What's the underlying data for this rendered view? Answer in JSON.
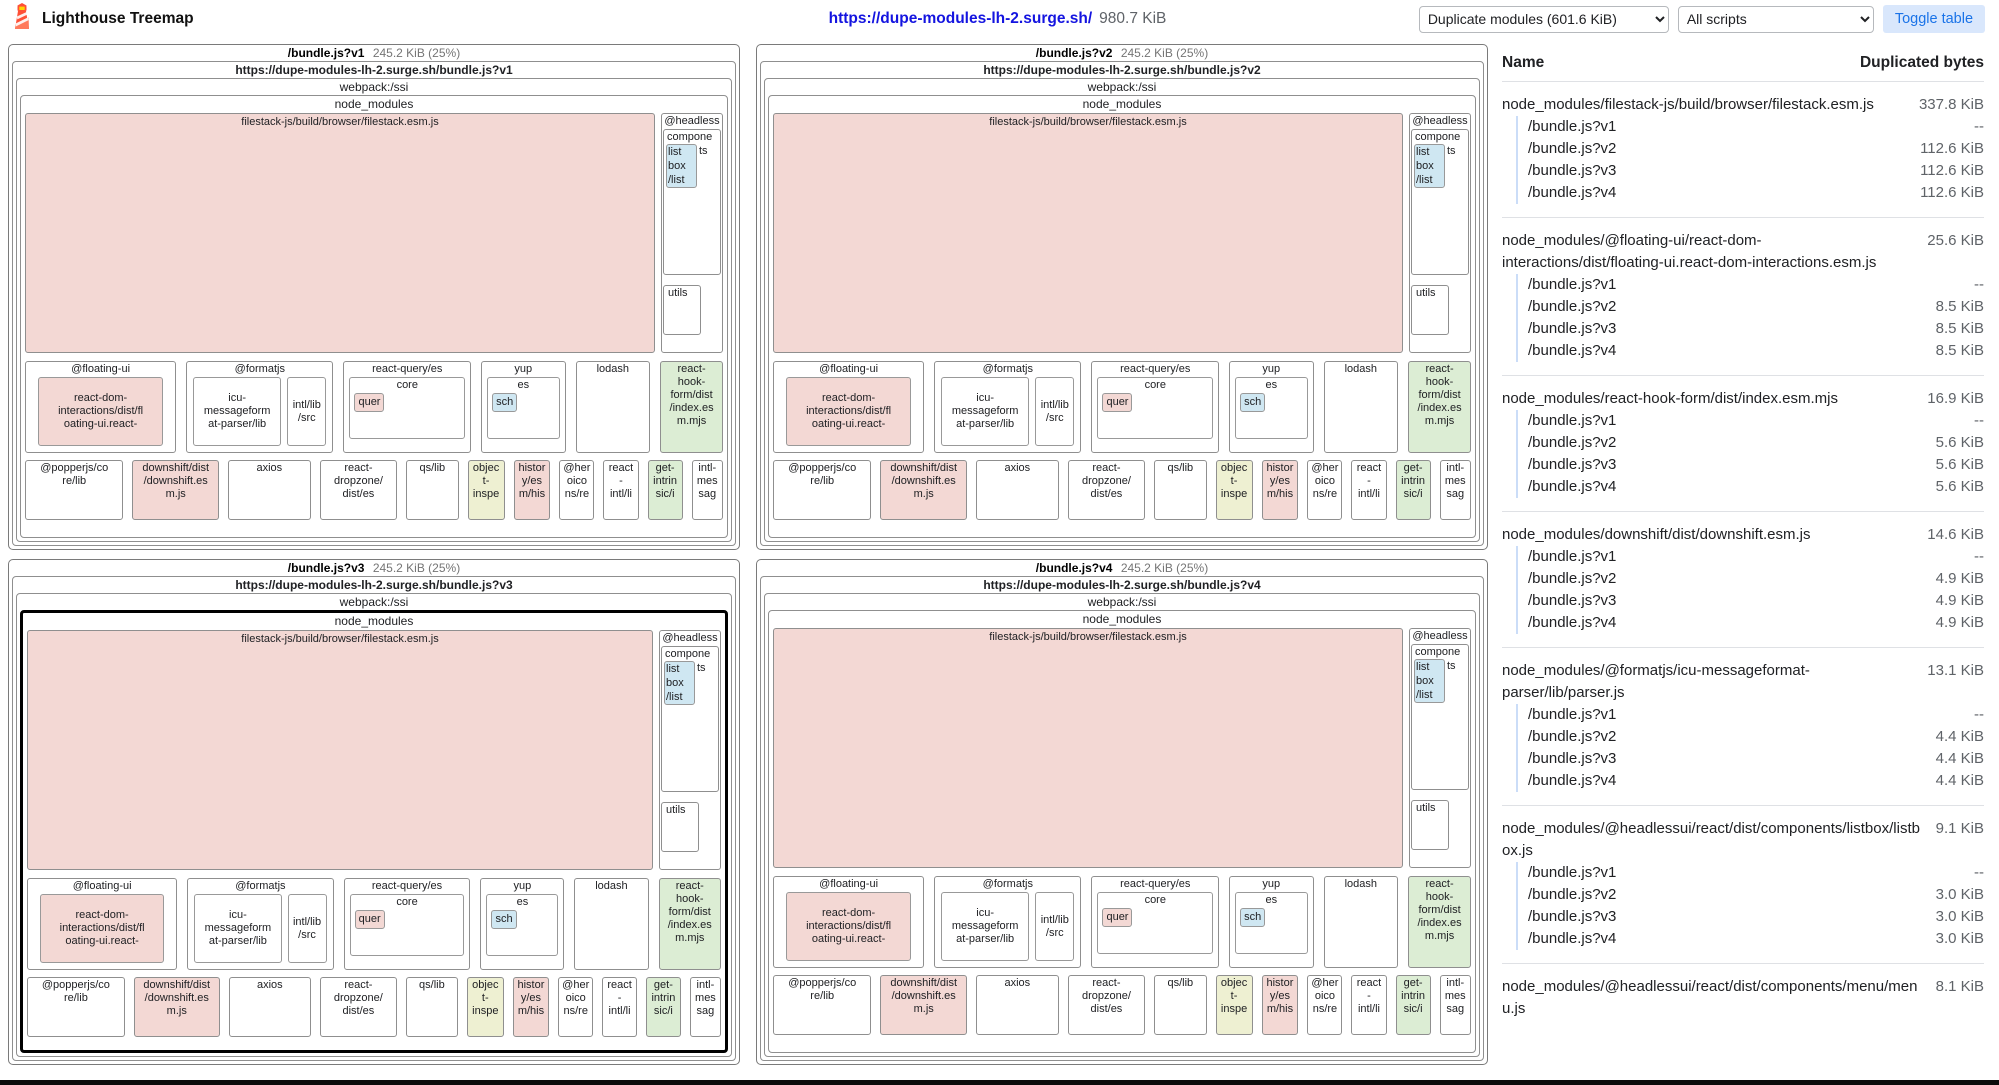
{
  "header": {
    "app_title": "Lighthouse Treemap",
    "url_link": "https://dupe-modules-lh-2.surge.sh/",
    "total_size": "980.7 KiB",
    "view_mode_selected": "Duplicate modules (601.6 KiB)",
    "script_filter_selected": "All scripts",
    "toggle_table_label": "Toggle table"
  },
  "icons": {
    "logo": "lighthouse-logo",
    "logo_colors": {
      "tower": "#ff4f36",
      "stripe": "#ffffff",
      "lamp": "#ffd500"
    }
  },
  "colors": {
    "link_blue": "#1414e0",
    "toggle_bg": "#d9e7fc",
    "toggle_text": "#1a73e8",
    "node_pink": "#f3d8d4",
    "node_green": "#dcedd4",
    "node_blue": "#cfe7f2",
    "node_yellow": "#eef0d2",
    "selected_border": "#000000"
  },
  "treemap": {
    "bundles": [
      {
        "name": "/bundle.js?v1",
        "size": "245.2 KiB (25%)",
        "url": "https://dupe-modules-lh-2.surge.sh/bundle.js?v1",
        "selected": false
      },
      {
        "name": "/bundle.js?v2",
        "size": "245.2 KiB (25%)",
        "url": "https://dupe-modules-lh-2.surge.sh/bundle.js?v2",
        "selected": false
      },
      {
        "name": "/bundle.js?v3",
        "size": "245.2 KiB (25%)",
        "url": "https://dupe-modules-lh-2.surge.sh/bundle.js?v3",
        "selected": true
      },
      {
        "name": "/bundle.js?v4",
        "size": "245.2 KiB (25%)",
        "url": "https://dupe-modules-lh-2.surge.sh/bundle.js?v4",
        "selected": false
      }
    ],
    "common": {
      "webpack_label": "webpack:/ssi",
      "node_modules_label": "node_modules",
      "filestack_label": "filestack-js/build/browser/filestack.esm.js",
      "headless": {
        "title": "@headless",
        "components_line1": "compone",
        "components_line2": "ts",
        "listbox_chip_lines": [
          "list",
          "box",
          "/list"
        ],
        "utils_label": "utils"
      },
      "mid_row": [
        {
          "id": "floating-ui",
          "title": "@floating-ui",
          "chips": [
            {
              "lines": [
                "react-dom-",
                "interactions/dist/fl",
                "oating-ui.react-"
              ],
              "color": "pink"
            }
          ]
        },
        {
          "id": "formatjs",
          "title": "@formatjs",
          "chips": [
            {
              "lines": [
                "icu-",
                "messageform",
                "at-parser/lib"
              ],
              "color": "white"
            },
            {
              "lines": [
                "intl/lib",
                "/src"
              ],
              "color": "white"
            }
          ]
        },
        {
          "id": "react-query-es",
          "title": "react-query/es",
          "inner": {
            "title": "core",
            "chip": {
              "label": "quer",
              "color": "pink"
            }
          }
        },
        {
          "id": "yup",
          "title": "yup",
          "inner": {
            "title": "es",
            "chip": {
              "label": "sch",
              "color": "blue"
            }
          }
        },
        {
          "id": "lodash",
          "title": "lodash"
        },
        {
          "id": "react-hook-form",
          "lines": [
            "react-",
            "hook-",
            "form/dist",
            "/index.es",
            "m.mjs"
          ],
          "color": "green"
        }
      ],
      "bottom_row": [
        {
          "id": "popperjs-core",
          "lines": [
            "@popperjs/co",
            "re/lib"
          ],
          "color": "white"
        },
        {
          "id": "downshift",
          "lines": [
            "downshift/dist",
            "/downshift.es",
            "m.js"
          ],
          "color": "pink"
        },
        {
          "id": "axios",
          "lines": [
            "axios"
          ],
          "color": "white"
        },
        {
          "id": "react-dropzone",
          "lines": [
            "react-",
            "dropzone/",
            "dist/es"
          ],
          "color": "white"
        },
        {
          "id": "qs-lib",
          "lines": [
            "qs/lib"
          ],
          "color": "white"
        },
        {
          "id": "object-inspect",
          "lines": [
            "objec",
            "t-",
            "inspe"
          ],
          "color": "yellow"
        },
        {
          "id": "history-esm",
          "lines": [
            "histor",
            "y/es",
            "m/his"
          ],
          "color": "pink"
        },
        {
          "id": "heroicons",
          "lines": [
            "@her",
            "oico",
            "ns/re"
          ],
          "color": "white"
        },
        {
          "id": "react-intl",
          "lines": [
            "react",
            "-",
            "intl/li"
          ],
          "color": "white"
        },
        {
          "id": "get-intrinsic",
          "lines": [
            "get-",
            "intrin",
            "sic/i"
          ],
          "color": "green"
        },
        {
          "id": "intl-messageformat",
          "lines": [
            "intl-",
            "mes",
            "sag"
          ],
          "color": "white"
        }
      ]
    }
  },
  "table": {
    "columns": [
      "Name",
      "Duplicated bytes"
    ],
    "groups": [
      {
        "name": "node_modules/filestack-js/build/browser/filestack.esm.js",
        "total": "337.8 KiB",
        "rows": [
          {
            "name": "/bundle.js?v1",
            "value": "--"
          },
          {
            "name": "/bundle.js?v2",
            "value": "112.6 KiB"
          },
          {
            "name": "/bundle.js?v3",
            "value": "112.6 KiB"
          },
          {
            "name": "/bundle.js?v4",
            "value": "112.6 KiB"
          }
        ]
      },
      {
        "name": "node_modules/@floating-ui/react-dom-interactions/dist/floating-ui.react-dom-interactions.esm.js",
        "total": "25.6 KiB",
        "rows": [
          {
            "name": "/bundle.js?v1",
            "value": "--"
          },
          {
            "name": "/bundle.js?v2",
            "value": "8.5 KiB"
          },
          {
            "name": "/bundle.js?v3",
            "value": "8.5 KiB"
          },
          {
            "name": "/bundle.js?v4",
            "value": "8.5 KiB"
          }
        ]
      },
      {
        "name": "node_modules/react-hook-form/dist/index.esm.mjs",
        "total": "16.9 KiB",
        "rows": [
          {
            "name": "/bundle.js?v1",
            "value": "--"
          },
          {
            "name": "/bundle.js?v2",
            "value": "5.6 KiB"
          },
          {
            "name": "/bundle.js?v3",
            "value": "5.6 KiB"
          },
          {
            "name": "/bundle.js?v4",
            "value": "5.6 KiB"
          }
        ]
      },
      {
        "name": "node_modules/downshift/dist/downshift.esm.js",
        "total": "14.6 KiB",
        "rows": [
          {
            "name": "/bundle.js?v1",
            "value": "--"
          },
          {
            "name": "/bundle.js?v2",
            "value": "4.9 KiB"
          },
          {
            "name": "/bundle.js?v3",
            "value": "4.9 KiB"
          },
          {
            "name": "/bundle.js?v4",
            "value": "4.9 KiB"
          }
        ]
      },
      {
        "name": "node_modules/@formatjs/icu-messageformat-parser/lib/parser.js",
        "total": "13.1 KiB",
        "rows": [
          {
            "name": "/bundle.js?v1",
            "value": "--"
          },
          {
            "name": "/bundle.js?v2",
            "value": "4.4 KiB"
          },
          {
            "name": "/bundle.js?v3",
            "value": "4.4 KiB"
          },
          {
            "name": "/bundle.js?v4",
            "value": "4.4 KiB"
          }
        ]
      },
      {
        "name": "node_modules/@headlessui/react/dist/components/listbox/listbox.js",
        "total": "9.1 KiB",
        "rows": [
          {
            "name": "/bundle.js?v1",
            "value": "--"
          },
          {
            "name": "/bundle.js?v2",
            "value": "3.0 KiB"
          },
          {
            "name": "/bundle.js?v3",
            "value": "3.0 KiB"
          },
          {
            "name": "/bundle.js?v4",
            "value": "3.0 KiB"
          }
        ]
      },
      {
        "name": "node_modules/@headlessui/react/dist/components/menu/menu.js",
        "total": "8.1 KiB",
        "rows": []
      }
    ]
  }
}
